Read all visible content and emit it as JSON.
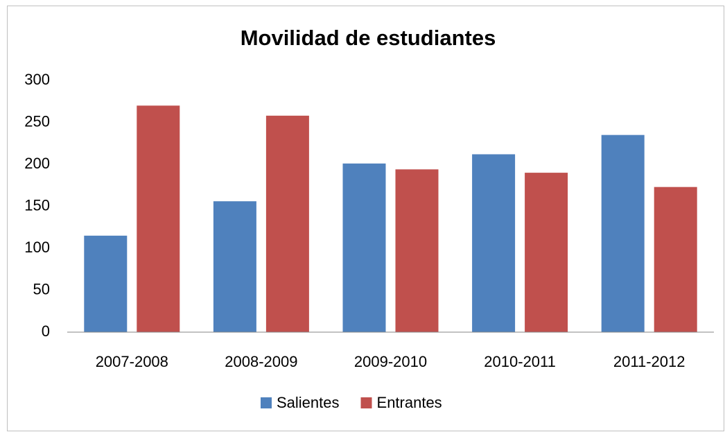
{
  "chart_data": {
    "type": "bar",
    "title": "Movilidad de estudiantes",
    "categories": [
      "2007-2008",
      "2008-2009",
      "2009-2010",
      "2010-2011",
      "2011-2012"
    ],
    "series": [
      {
        "name": "Salientes",
        "color": "#4f81bd",
        "values": [
          115,
          156,
          201,
          212,
          235
        ]
      },
      {
        "name": "Entrantes",
        "color": "#c0504d",
        "values": [
          270,
          258,
          194,
          190,
          173
        ]
      }
    ],
    "ylim": [
      0,
      300
    ],
    "yticks": [
      0,
      50,
      100,
      150,
      200,
      250,
      300
    ],
    "grid": false,
    "legend": "bottom"
  }
}
